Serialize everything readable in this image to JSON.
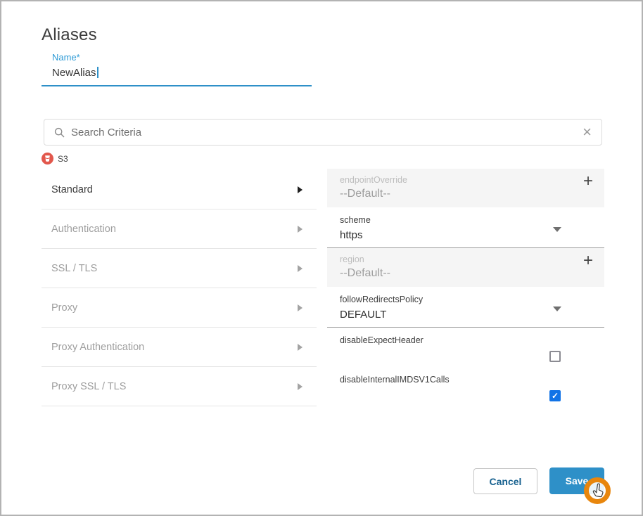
{
  "title": "Aliases",
  "name_field": {
    "label": "Name*",
    "value": "NewAlias"
  },
  "search": {
    "placeholder": "Search Criteria"
  },
  "group": {
    "label": "S3"
  },
  "categories": [
    {
      "label": "Standard",
      "active": true
    },
    {
      "label": "Authentication",
      "active": false
    },
    {
      "label": "SSL / TLS",
      "active": false
    },
    {
      "label": "Proxy",
      "active": false
    },
    {
      "label": "Proxy Authentication",
      "active": false
    },
    {
      "label": "Proxy SSL / TLS",
      "active": false
    }
  ],
  "fields": [
    {
      "type": "default",
      "label": "endpointOverride",
      "value": "--Default--"
    },
    {
      "type": "select",
      "label": "scheme",
      "value": "https"
    },
    {
      "type": "default",
      "label": "region",
      "value": "--Default--"
    },
    {
      "type": "select",
      "label": "followRedirectsPolicy",
      "value": "DEFAULT"
    },
    {
      "type": "checkbox",
      "label": "disableExpectHeader",
      "checked": false
    },
    {
      "type": "checkbox",
      "label": "disableInternalIMDSV1Calls",
      "checked": true
    }
  ],
  "buttons": {
    "cancel": "Cancel",
    "save": "Save"
  },
  "colors": {
    "accent_blue": "#2e90c8",
    "label_blue": "#2e9bd6",
    "checkbox_checked": "#1273e6",
    "s3_icon_red": "#e2574c",
    "cursor_ring_orange": "#e8860d"
  }
}
